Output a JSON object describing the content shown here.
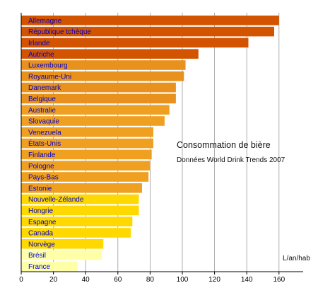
{
  "chart_data": {
    "type": "bar",
    "orientation": "horizontal",
    "title": "Consommation de bière",
    "subtitle": "Données World Drink Trends 2007",
    "xlabel": "L/an/hab",
    "ylabel": "",
    "xlim": [
      0,
      175
    ],
    "xticks": [
      0,
      20,
      40,
      60,
      80,
      100,
      120,
      140,
      160
    ],
    "grid": "vertical",
    "categories": [
      "Allemagne",
      "République tchèque",
      "Irlande",
      "Autriche",
      "Luxembourg",
      "Royaume-Uni",
      "Danemark",
      "Belgique",
      "Australie",
      "Slovaquie",
      "Venezuela",
      "États-Unis",
      "Finlande",
      "Pologne",
      "Pays-Bas",
      "Estonie",
      "Nouvelle-Zélande",
      "Hongrie",
      "Espagne",
      "Canada",
      "Norvège",
      "Brésil",
      "France"
    ],
    "values": [
      160,
      157,
      141,
      110,
      102,
      101,
      96,
      96,
      92,
      89,
      82,
      82,
      81,
      80,
      79,
      75,
      73,
      73,
      69,
      68,
      51,
      50,
      35
    ],
    "colors": [
      "#d35400",
      "#d35400",
      "#d35400",
      "#d35400",
      "#e8911c",
      "#e8911c",
      "#e8911c",
      "#e8911c",
      "#f0a020",
      "#f0a020",
      "#f0a020",
      "#f0a020",
      "#f0a020",
      "#f0a020",
      "#f0a020",
      "#f0a020",
      "#ffd800",
      "#ffd800",
      "#ffd800",
      "#ffd800",
      "#ffd800",
      "#ffffa8",
      "#ffffa8"
    ],
    "label_color": "#0000cc"
  }
}
